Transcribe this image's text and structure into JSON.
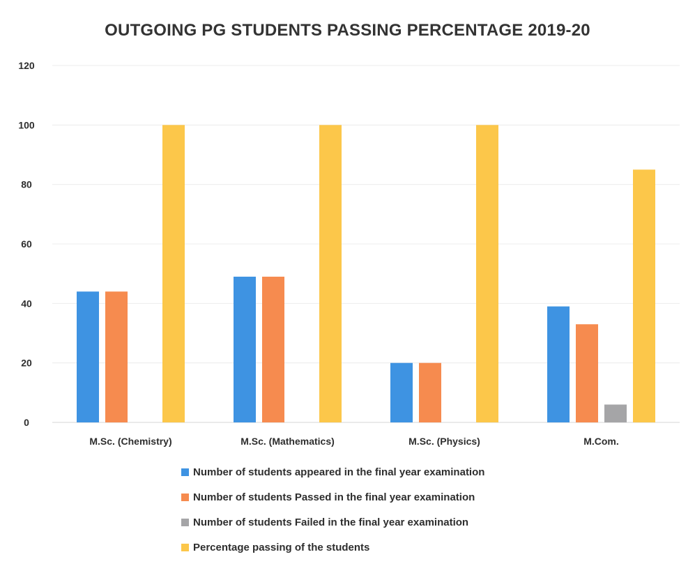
{
  "chart_data": {
    "type": "bar",
    "title": "OUTGOING PG STUDENTS PASSING PERCENTAGE 2019-20",
    "xlabel": "",
    "ylabel": "",
    "ylim": [
      0,
      120
    ],
    "yticks": [
      "0",
      "20",
      "40",
      "60",
      "80",
      "100",
      "120"
    ],
    "ytick_values": [
      0,
      20,
      40,
      60,
      80,
      100,
      120
    ],
    "grid": true,
    "legend_position": "bottom",
    "categories": [
      "M.Sc. (Chemistry)",
      "M.Sc. (Mathematics)",
      "M.Sc. (Physics)",
      "M.Com."
    ],
    "series": [
      {
        "name": "Number of students appeared in the final year examination",
        "color": "#3E93E2",
        "values": [
          44,
          49,
          20,
          39
        ]
      },
      {
        "name": "Number of students Passed in the final year examination",
        "color": "#F68B4F",
        "values": [
          44,
          49,
          20,
          33
        ]
      },
      {
        "name": "Number of students Failed in the final year examination",
        "color": "#A5A5A7",
        "values": [
          0,
          0,
          0,
          6
        ]
      },
      {
        "name": "Percentage passing of the students",
        "color": "#FCC74A",
        "values": [
          100,
          100,
          100,
          85
        ]
      }
    ]
  }
}
